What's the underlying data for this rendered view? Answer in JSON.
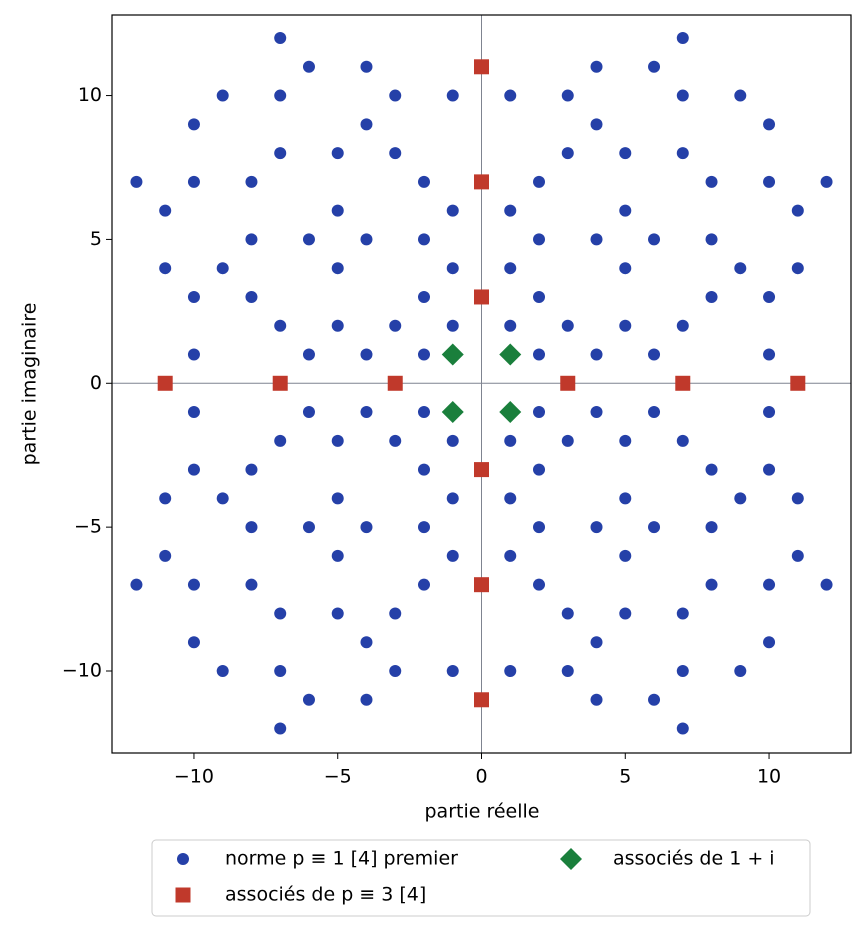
{
  "chart_data": {
    "type": "scatter",
    "xlabel": "partie réelle",
    "ylabel": "partie imaginaire",
    "xlim": [
      -12.85,
      12.85
    ],
    "ylim": [
      -12.85,
      12.8
    ],
    "xticks": [
      {
        "value": -10,
        "label": "−10"
      },
      {
        "value": -5,
        "label": "−5"
      },
      0,
      5,
      10
    ],
    "yticks": [
      {
        "value": -10,
        "label": "−10"
      },
      {
        "value": -5,
        "label": "−5"
      },
      0,
      5,
      10
    ],
    "legend": "below",
    "series": [
      {
        "name": "norme p ≡ 1 [4] premier",
        "color": "#2540a8",
        "marker": "circle",
        "x": [
          1,
          1,
          1,
          1,
          2,
          2,
          2,
          2,
          3,
          3,
          3,
          4,
          4,
          4,
          4,
          5,
          5,
          5,
          5,
          6,
          6,
          6,
          7,
          7,
          7,
          7,
          8,
          8,
          8,
          9,
          9,
          10,
          10,
          10,
          10,
          11,
          11,
          12,
          -1,
          -1,
          -1,
          -1,
          -2,
          -2,
          -2,
          -2,
          -3,
          -3,
          -3,
          -4,
          -4,
          -4,
          -4,
          -5,
          -5,
          -5,
          -5,
          -6,
          -6,
          -6,
          -7,
          -7,
          -7,
          -7,
          -8,
          -8,
          -8,
          -9,
          -9,
          -10,
          -10,
          -10,
          -10,
          -11,
          -11,
          -12,
          -1,
          -1,
          -1,
          -1,
          -2,
          -2,
          -2,
          -2,
          -3,
          -3,
          -3,
          -4,
          -4,
          -4,
          -4,
          -5,
          -5,
          -5,
          -5,
          -6,
          -6,
          -6,
          -7,
          -7,
          -7,
          -7,
          -8,
          -8,
          -8,
          -9,
          -9,
          -10,
          -10,
          -10,
          -10,
          -11,
          -11,
          -12,
          1,
          1,
          1,
          1,
          2,
          2,
          2,
          2,
          3,
          3,
          3,
          4,
          4,
          4,
          4,
          5,
          5,
          5,
          5,
          6,
          6,
          6,
          7,
          7,
          7,
          7,
          8,
          8,
          8,
          9,
          9,
          10,
          10,
          10,
          10,
          11,
          11,
          12
        ],
        "y": [
          2,
          4,
          6,
          10,
          1,
          3,
          5,
          7,
          2,
          8,
          10,
          1,
          5,
          9,
          11,
          2,
          4,
          6,
          8,
          1,
          5,
          11,
          2,
          8,
          10,
          12,
          3,
          5,
          7,
          4,
          10,
          1,
          3,
          7,
          9,
          4,
          6,
          7,
          2,
          4,
          6,
          10,
          1,
          3,
          5,
          7,
          2,
          8,
          10,
          1,
          5,
          9,
          11,
          2,
          4,
          6,
          8,
          1,
          5,
          11,
          2,
          8,
          10,
          12,
          3,
          5,
          7,
          4,
          10,
          1,
          3,
          7,
          9,
          4,
          6,
          7,
          -2,
          -4,
          -6,
          -10,
          -1,
          -3,
          -5,
          -7,
          -2,
          -8,
          -10,
          -1,
          -5,
          -9,
          -11,
          -2,
          -4,
          -6,
          -8,
          -1,
          -5,
          -11,
          -2,
          -8,
          -10,
          -12,
          -3,
          -5,
          -7,
          -4,
          -10,
          -1,
          -3,
          -7,
          -9,
          -4,
          -6,
          -7,
          -2,
          -4,
          -6,
          -10,
          -1,
          -3,
          -5,
          -7,
          -2,
          -8,
          -10,
          -1,
          -5,
          -9,
          -11,
          -2,
          -4,
          -6,
          -8,
          -1,
          -5,
          -11,
          -2,
          -8,
          -10,
          -12,
          -3,
          -5,
          -7,
          -4,
          -10,
          -1,
          -3,
          -7,
          -9,
          -4,
          -6,
          -7
        ]
      },
      {
        "name": "associés de p ≡ 3 [4]",
        "color": "#c0392b",
        "marker": "square",
        "x": [
          3,
          -3,
          7,
          -7,
          11,
          -11,
          0,
          0,
          0,
          0,
          0,
          0
        ],
        "y": [
          0,
          0,
          0,
          0,
          0,
          0,
          3,
          -3,
          7,
          -7,
          11,
          -11
        ]
      },
      {
        "name": "associés de 1 + i",
        "color": "#1a7f3c",
        "marker": "diamond",
        "x": [
          1,
          -1,
          -1,
          1
        ],
        "y": [
          1,
          1,
          -1,
          -1
        ]
      }
    ]
  }
}
